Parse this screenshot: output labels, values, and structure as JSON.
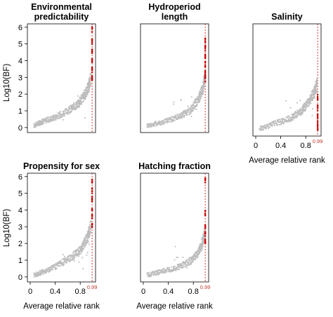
{
  "figure": {
    "ylabel": "Log10(BF)",
    "xlabel": "Average relative rank"
  },
  "chart_data": [
    {
      "type": "scatter",
      "title_lines": [
        "Environmental",
        "predictability"
      ],
      "xlim": [
        0,
        1
      ],
      "ylim": [
        -0.3,
        6.2
      ],
      "xticks": [
        "0",
        "0.4",
        "0.8"
      ],
      "yticks": [
        "0",
        "1",
        "2",
        "3",
        "4",
        "5",
        "6"
      ],
      "show_yaxis": true,
      "show_xaxis": false,
      "show_xlabel": false,
      "threshold": 0.99,
      "threshold_label": "",
      "series": [
        {
          "color": "#bdbdbd",
          "points": [
            [
              0.05,
              0.1
            ],
            [
              0.2,
              0.35
            ],
            [
              0.4,
              0.6
            ],
            [
              0.6,
              0.95
            ],
            [
              0.75,
              1.35
            ],
            [
              0.85,
              1.8
            ],
            [
              0.92,
              2.3
            ],
            [
              0.96,
              2.8
            ]
          ]
        },
        {
          "color": "#cc0000",
          "points": [
            [
              0.99,
              3.0
            ],
            [
              0.99,
              3.5
            ],
            [
              0.99,
              4.0
            ],
            [
              0.99,
              4.6
            ],
            [
              0.99,
              5.2
            ],
            [
              0.99,
              5.9
            ]
          ]
        }
      ]
    },
    {
      "type": "scatter",
      "title_lines": [
        "Hydroperiod",
        "length"
      ],
      "xlim": [
        0,
        1
      ],
      "ylim": [
        -0.3,
        6.2
      ],
      "xticks": [
        "0",
        "0.4",
        "0.8"
      ],
      "yticks": [
        "0",
        "1",
        "2",
        "3",
        "4",
        "5",
        "6"
      ],
      "show_yaxis": false,
      "show_xaxis": false,
      "show_xlabel": false,
      "threshold": 0.99,
      "threshold_label": "",
      "series": [
        {
          "color": "#bdbdbd",
          "points": [
            [
              0.05,
              0.1
            ],
            [
              0.3,
              0.3
            ],
            [
              0.55,
              0.6
            ],
            [
              0.75,
              1.0
            ],
            [
              0.87,
              1.6
            ],
            [
              0.94,
              2.2
            ],
            [
              0.97,
              2.8
            ]
          ]
        },
        {
          "color": "#cc0000",
          "points": [
            [
              0.99,
              2.9
            ],
            [
              0.99,
              3.3
            ],
            [
              0.99,
              3.8
            ],
            [
              0.99,
              4.3
            ],
            [
              0.99,
              4.8
            ],
            [
              0.99,
              5.3
            ]
          ]
        }
      ]
    },
    {
      "type": "scatter",
      "title_lines": [
        "Salinity"
      ],
      "xlim": [
        0,
        1
      ],
      "ylim": [
        -0.3,
        6.2
      ],
      "xticks": [
        "0",
        "0.4",
        "0.8"
      ],
      "yticks": [
        "0",
        "1",
        "2",
        "3",
        "4",
        "5",
        "6"
      ],
      "show_yaxis": false,
      "show_xaxis": true,
      "show_xlabel": true,
      "threshold": 0.99,
      "threshold_label": "0.99",
      "series": [
        {
          "color": "#bdbdbd",
          "points": [
            [
              0.05,
              0.1
            ],
            [
              0.3,
              0.4
            ],
            [
              0.55,
              0.7
            ],
            [
              0.72,
              1.1
            ],
            [
              0.84,
              1.6
            ],
            [
              0.92,
              2.1
            ],
            [
              0.97,
              2.6
            ]
          ]
        },
        {
          "color": "#cc0000",
          "points": [
            [
              0.99,
              0.2
            ],
            [
              0.99,
              0.5
            ],
            [
              0.99,
              0.9
            ],
            [
              0.99,
              1.4
            ],
            [
              0.99,
              2.0
            ]
          ]
        }
      ]
    },
    {
      "type": "scatter",
      "title_lines": [
        "Propensity for sex"
      ],
      "xlim": [
        0,
        1
      ],
      "ylim": [
        -0.3,
        6.2
      ],
      "xticks": [
        "0",
        "0.4",
        "0.8"
      ],
      "yticks": [
        "0",
        "1",
        "2",
        "3",
        "4",
        "5",
        "6"
      ],
      "show_yaxis": true,
      "show_xaxis": true,
      "show_xlabel": true,
      "threshold": 0.99,
      "threshold_label": "0.99",
      "series": [
        {
          "color": "#bdbdbd",
          "points": [
            [
              0.05,
              0.1
            ],
            [
              0.25,
              0.35
            ],
            [
              0.45,
              0.7
            ],
            [
              0.65,
              1.1
            ],
            [
              0.8,
              1.6
            ],
            [
              0.9,
              2.2
            ],
            [
              0.96,
              2.9
            ]
          ]
        },
        {
          "color": "#cc0000",
          "points": [
            [
              0.99,
              3.1
            ],
            [
              0.99,
              3.6
            ],
            [
              0.99,
              4.1
            ],
            [
              0.99,
              4.7
            ],
            [
              0.99,
              5.2
            ],
            [
              0.99,
              5.8
            ]
          ]
        }
      ]
    },
    {
      "type": "scatter",
      "title_lines": [
        "Hatching fraction"
      ],
      "xlim": [
        0,
        1
      ],
      "ylim": [
        -0.3,
        6.2
      ],
      "xticks": [
        "0",
        "0.4",
        "0.8"
      ],
      "yticks": [
        "0",
        "1",
        "2",
        "3",
        "4",
        "5",
        "6"
      ],
      "show_yaxis": false,
      "show_xaxis": true,
      "show_xlabel": true,
      "threshold": 0.99,
      "threshold_label": "0.99",
      "series": [
        {
          "color": "#bdbdbd",
          "points": [
            [
              0.05,
              0.1
            ],
            [
              0.3,
              0.3
            ],
            [
              0.55,
              0.55
            ],
            [
              0.75,
              0.9
            ],
            [
              0.87,
              1.4
            ],
            [
              0.94,
              2.0
            ],
            [
              0.97,
              2.5
            ]
          ]
        },
        {
          "color": "#cc0000",
          "points": [
            [
              0.99,
              2.2
            ],
            [
              0.99,
              2.6
            ],
            [
              0.99,
              3.0
            ],
            [
              0.99,
              3.9
            ],
            [
              0.99,
              5.8
            ]
          ]
        }
      ]
    }
  ]
}
